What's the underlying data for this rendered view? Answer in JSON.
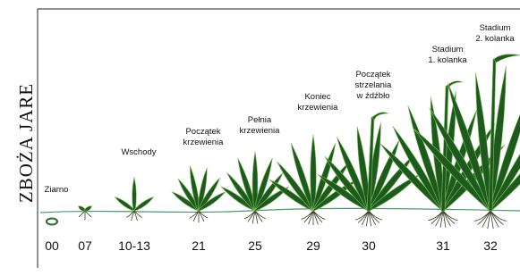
{
  "title": "ZBOŻA JARE",
  "stages": [
    {
      "code": "00",
      "label": [
        "Ziarno"
      ]
    },
    {
      "code": "07"
    },
    {
      "code": "10-13",
      "label": [
        "Wschody"
      ]
    },
    {
      "code": "21",
      "label": [
        "Początek",
        "krzewienia"
      ]
    },
    {
      "code": "25",
      "label": [
        "Pełnia",
        "krzewienia"
      ]
    },
    {
      "code": "29",
      "label": [
        "Koniec",
        "krzewienia"
      ]
    },
    {
      "code": "30",
      "label": [
        "Początek",
        "strzelania",
        "w źdźbło"
      ]
    },
    {
      "code": "31",
      "label": [
        "Stadium",
        "1. kolanka"
      ]
    },
    {
      "code": "32",
      "label": [
        "Stadium",
        "2. kolanka"
      ]
    }
  ]
}
